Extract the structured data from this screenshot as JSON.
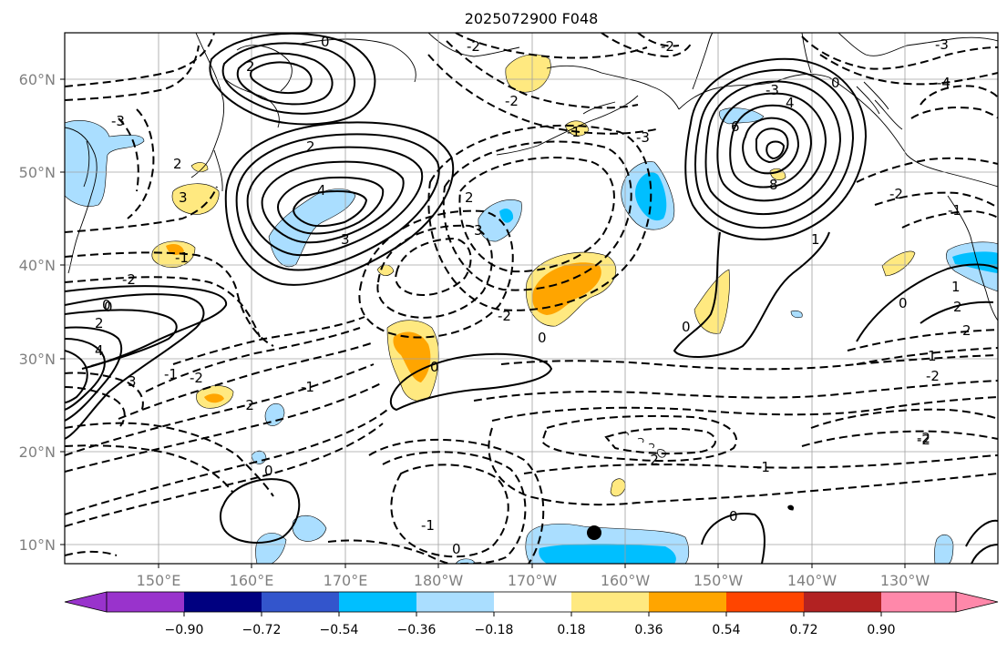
{
  "title": "2025072900 F048",
  "map": {
    "lat_ticks": [
      "60°N",
      "50°N",
      "40°N",
      "30°N",
      "20°N",
      "10°N"
    ],
    "lon_ticks": [
      "150°E",
      "160°E",
      "170°E",
      "180°W",
      "170°W",
      "160°W",
      "150°W",
      "140°W",
      "130°W"
    ],
    "contour_labels": [
      "0",
      "2",
      "2",
      "4",
      "3",
      "3",
      "2",
      "-2",
      "-2",
      "-1",
      "-2",
      "-3",
      "-3",
      "2",
      "3",
      "4",
      "6",
      "8",
      "-3",
      "-4",
      "-3",
      "0",
      "-1",
      "-2",
      "0",
      "1",
      "1",
      "0",
      "2",
      "4",
      "3",
      "0",
      "2",
      "-2",
      "-1",
      "0",
      "0",
      "-2",
      "-1",
      "-1",
      "-2",
      "-2",
      "0",
      "-2",
      "-1",
      "0",
      "0",
      "-1",
      "0",
      "-2",
      "-2",
      "1",
      "2",
      "-2"
    ],
    "colors": {
      "land_line": "#000000",
      "grid": "#a0a0a0",
      "tick_label": "#808080"
    }
  },
  "colorbar": {
    "ticks": [
      "−0.90",
      "−0.72",
      "−0.54",
      "−0.36",
      "−0.18",
      "0.18",
      "0.36",
      "0.54",
      "0.72",
      "0.90"
    ],
    "colors": [
      "#9933cc",
      "#000080",
      "#3355cc",
      "#00bfff",
      "#aadeff",
      "#ffffff",
      "#ffe980",
      "#ffa500",
      "#ff4500",
      "#b22222",
      "#ff88aa"
    ]
  }
}
